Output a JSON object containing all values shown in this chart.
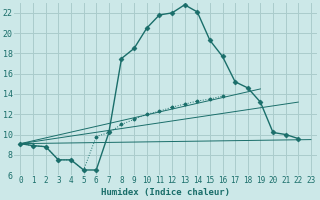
{
  "xlabel": "Humidex (Indice chaleur)",
  "bg_color": "#cce8e8",
  "grid_color": "#aacccc",
  "line_color": "#1a6e6a",
  "xlim": [
    -0.5,
    23.5
  ],
  "ylim": [
    6,
    23
  ],
  "xticks": [
    0,
    1,
    2,
    3,
    4,
    5,
    6,
    7,
    8,
    9,
    10,
    11,
    12,
    13,
    14,
    15,
    16,
    17,
    18,
    19,
    20,
    21,
    22,
    23
  ],
  "yticks": [
    6,
    8,
    10,
    12,
    14,
    16,
    18,
    20,
    22
  ],
  "series1_x": [
    0,
    1,
    2,
    3,
    4,
    5,
    6,
    7,
    8,
    9,
    10,
    11,
    12,
    13,
    14,
    15,
    16,
    17,
    18,
    19,
    20,
    21,
    22
  ],
  "series1_y": [
    9.1,
    8.9,
    8.8,
    7.5,
    7.5,
    6.5,
    6.5,
    10.2,
    17.5,
    18.5,
    20.5,
    21.8,
    22.0,
    22.8,
    22.1,
    19.3,
    17.7,
    15.2,
    14.6,
    13.2,
    10.2,
    10.0,
    9.6
  ],
  "series2_x": [
    0,
    1,
    2,
    3,
    4,
    5,
    6,
    7,
    8,
    9,
    10,
    11,
    12,
    13,
    14,
    15,
    16
  ],
  "series2_y": [
    9.1,
    8.9,
    8.8,
    7.5,
    7.5,
    6.5,
    9.8,
    10.2,
    11.0,
    11.5,
    12.0,
    12.3,
    12.7,
    13.0,
    13.3,
    13.5,
    13.8
  ],
  "series3_x": [
    0,
    23
  ],
  "series3_y": [
    9.1,
    9.5
  ],
  "series4_x": [
    0,
    22
  ],
  "series4_y": [
    9.1,
    13.2
  ],
  "series5_x": [
    0,
    19
  ],
  "series5_y": [
    9.1,
    14.5
  ],
  "xlabel_fontsize": 6.5,
  "tick_fontsize": 5.5
}
